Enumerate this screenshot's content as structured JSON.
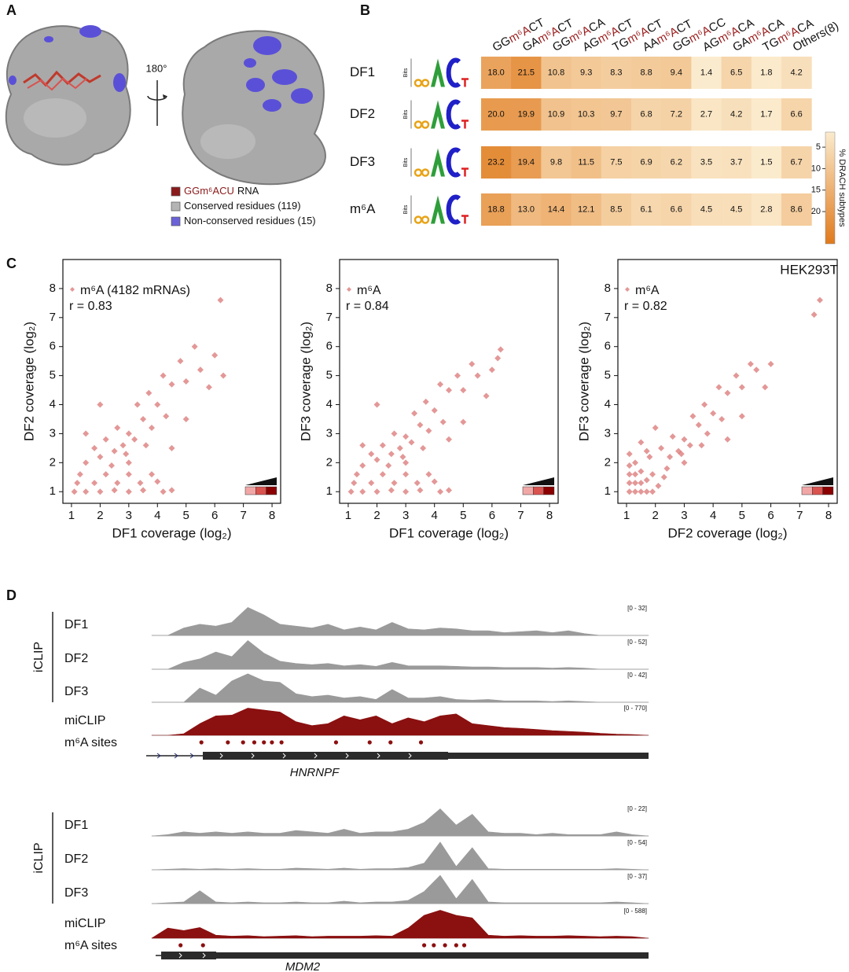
{
  "panel_labels": [
    "A",
    "B",
    "C",
    "D"
  ],
  "panel_a": {
    "rotation": "180°",
    "legend": [
      {
        "parts": [
          "GGm⁶ACU",
          "RNA"
        ],
        "color": "#8b1a1a"
      },
      {
        "parts": [
          "Conserved residues (119)"
        ],
        "color": "#b4b4b4"
      },
      {
        "parts": [
          "Non-conserved residues (15)"
        ],
        "color": "#6a62d6"
      }
    ]
  },
  "panel_c": {
    "cell_line": "HEK293T"
  },
  "chart_data": [
    {
      "type": "heatmap",
      "logo_axis": "Bits",
      "highlight_color": "#9b1c1c",
      "columns": [
        [
          "GG",
          "m⁶A",
          "CT"
        ],
        [
          "GA",
          "m⁶A",
          "CT"
        ],
        [
          "GG",
          "m⁶A",
          "CA"
        ],
        [
          "AG",
          "m⁶A",
          "CT"
        ],
        [
          "TG",
          "m⁶A",
          "CT"
        ],
        [
          "AA",
          "m⁶A",
          "CT"
        ],
        [
          "GG",
          "m⁶A",
          "CC"
        ],
        [
          "AG",
          "m⁶A",
          "CA"
        ],
        [
          "GA",
          "m⁶A",
          "CA"
        ],
        [
          "TG",
          "m⁶A",
          "CA"
        ],
        [
          "Others(8)"
        ]
      ],
      "rows": [
        "DF1",
        "DF2",
        "DF3",
        "m⁶A"
      ],
      "row_colors": [
        "#111",
        "#111",
        "#111",
        "#9b1c1c"
      ],
      "values": [
        [
          18.0,
          21.5,
          10.8,
          9.3,
          8.3,
          8.8,
          9.4,
          1.4,
          6.5,
          1.8,
          4.2
        ],
        [
          20.0,
          19.9,
          10.9,
          10.3,
          9.7,
          6.8,
          7.2,
          2.7,
          4.2,
          1.7,
          6.6
        ],
        [
          23.2,
          19.4,
          9.8,
          11.5,
          7.5,
          6.9,
          6.2,
          3.5,
          3.7,
          1.5,
          6.7
        ],
        [
          18.8,
          13.0,
          14.4,
          12.1,
          8.5,
          6.1,
          6.6,
          4.5,
          4.5,
          2.8,
          8.6
        ]
      ],
      "value_labels": [
        [
          "18.0",
          "21.5",
          "10.8",
          "9.3",
          "8.3",
          "8.8",
          "9.4",
          "1.4",
          "6.5",
          "1.8",
          "4.2"
        ],
        [
          "20.0",
          "19.9",
          "10.9",
          "10.3",
          "9.7",
          "6.8",
          "7.2",
          "2.7",
          "4.2",
          "1.7",
          "6.6"
        ],
        [
          "23.2",
          "19.4",
          "9.8",
          "11.5",
          "7.5",
          "6.9",
          "6.2",
          "3.5",
          "3.7",
          "1.5",
          "6.7"
        ],
        [
          "18.8",
          "13.0",
          "14.4",
          "12.1",
          "8.5",
          "6.1",
          "6.6",
          "4.5",
          "4.5",
          "2.8",
          "8.6"
        ]
      ],
      "clim": [
        1.5,
        27.5
      ],
      "cticks": [
        5,
        10,
        15,
        20
      ],
      "colorbar_label": "% DRACH subtypes",
      "colors": [
        "#fbebcd",
        "#e07a1c"
      ]
    },
    {
      "type": "scatter",
      "legend": "m⁶A (4182 mRNAs)",
      "annotation": "r = 0.83",
      "xlabel": "DF1 coverage (log₂)",
      "ylabel": "DF2 coverage (log₂)",
      "color": "#c8322f",
      "xlim": [
        0.7,
        8.3
      ],
      "ylim": [
        0.6,
        9
      ],
      "xticks": [
        1,
        2,
        3,
        4,
        5,
        6,
        7,
        8
      ],
      "yticks": [
        1,
        2,
        3,
        4,
        5,
        6,
        7,
        8
      ],
      "x": [
        1.1,
        1.5,
        2.0,
        2.5,
        3.0,
        3.5,
        4.2,
        4.5,
        1.2,
        1.8,
        2.6,
        3.4,
        4.0,
        1.3,
        2.2,
        3.0,
        3.8,
        1.5,
        2.0,
        2.5,
        2.8,
        3.0,
        3.2,
        2.6,
        3.5,
        3.8,
        2.2,
        1.8,
        3.3,
        4.0,
        4.3,
        3.7,
        4.5,
        4.2,
        5.0,
        4.8,
        5.5,
        5.3,
        6.0,
        5.8,
        2.0,
        1.5,
        3.0,
        4.5,
        5.0,
        6.2,
        6.3,
        2.4,
        2.9,
        3.6
      ],
      "y": [
        1.0,
        1.0,
        1.0,
        1.05,
        1.0,
        1.05,
        1.0,
        1.05,
        1.3,
        1.3,
        1.3,
        1.3,
        1.35,
        1.6,
        1.6,
        1.6,
        1.6,
        2.0,
        2.2,
        2.4,
        2.6,
        3.0,
        2.8,
        3.2,
        3.5,
        3.2,
        2.8,
        2.5,
        4.0,
        4.0,
        3.6,
        4.4,
        4.7,
        5.0,
        4.8,
        5.5,
        5.2,
        6.0,
        5.7,
        4.6,
        4.0,
        3.0,
        2.0,
        2.5,
        3.5,
        7.6,
        5.0,
        1.9,
        2.3,
        2.6
      ]
    },
    {
      "type": "scatter",
      "legend": "m⁶A",
      "annotation": "r = 0.84",
      "xlabel": "DF1 coverage (log₂)",
      "ylabel": "DF3 coverage (log₂)",
      "color": "#c8322f",
      "xlim": [
        0.7,
        8.3
      ],
      "ylim": [
        0.6,
        9
      ],
      "xticks": [
        1,
        2,
        3,
        4,
        5,
        6,
        7,
        8
      ],
      "yticks": [
        1,
        2,
        3,
        4,
        5,
        6,
        7,
        8
      ],
      "x": [
        1.1,
        1.5,
        2.0,
        2.5,
        3.0,
        3.5,
        4.2,
        4.5,
        1.2,
        1.8,
        2.6,
        3.4,
        4.0,
        1.3,
        2.2,
        3.0,
        3.8,
        1.5,
        2.0,
        2.5,
        2.8,
        3.0,
        3.2,
        2.6,
        3.5,
        3.8,
        2.2,
        1.8,
        3.3,
        4.0,
        4.3,
        3.7,
        4.5,
        4.2,
        5.0,
        4.8,
        5.5,
        5.3,
        6.0,
        5.8,
        2.0,
        1.5,
        3.0,
        4.5,
        5.0,
        6.2,
        6.3,
        2.4,
        2.9,
        3.6
      ],
      "y": [
        1.0,
        1.0,
        1.0,
        1.05,
        1.0,
        1.05,
        1.0,
        1.05,
        1.3,
        1.3,
        1.3,
        1.3,
        1.35,
        1.6,
        1.6,
        1.6,
        1.6,
        1.9,
        2.1,
        2.3,
        2.5,
        2.9,
        2.7,
        3.0,
        3.3,
        3.1,
        2.6,
        2.3,
        3.7,
        3.8,
        3.4,
        4.1,
        4.5,
        4.7,
        4.5,
        5.0,
        5.0,
        5.4,
        5.2,
        4.3,
        4.0,
        2.6,
        2.0,
        2.8,
        3.4,
        5.6,
        5.9,
        1.9,
        2.2,
        2.5
      ]
    },
    {
      "type": "scatter",
      "legend": "m⁶A",
      "annotation": "r = 0.82",
      "xlabel": "DF2 coverage (log₂)",
      "ylabel": "DF3 coverage (log₂)",
      "color": "#c8322f",
      "xlim": [
        0.7,
        8.3
      ],
      "ylim": [
        0.6,
        9
      ],
      "xticks": [
        1,
        2,
        3,
        4,
        5,
        6,
        7,
        8
      ],
      "yticks": [
        1,
        2,
        3,
        4,
        5,
        6,
        7,
        8
      ],
      "x": [
        1.1,
        1.1,
        1.1,
        1.1,
        1.1,
        1.3,
        1.3,
        1.3,
        1.3,
        1.5,
        1.5,
        1.5,
        1.7,
        1.7,
        1.7,
        1.9,
        1.9,
        2.1,
        2.3,
        2.5,
        2.8,
        3.0,
        3.2,
        2.6,
        3.5,
        3.8,
        2.2,
        1.8,
        3.3,
        4.0,
        4.3,
        3.7,
        4.5,
        4.2,
        5.0,
        4.8,
        5.5,
        5.3,
        6.0,
        5.8,
        2.0,
        1.5,
        3.0,
        4.5,
        5.0,
        7.7,
        7.5,
        2.4,
        2.9,
        3.6
      ],
      "y": [
        1.0,
        1.3,
        1.6,
        1.9,
        2.3,
        1.0,
        1.3,
        1.6,
        2.0,
        1.0,
        1.3,
        1.7,
        1.0,
        1.4,
        2.4,
        1.0,
        1.6,
        1.2,
        1.5,
        2.2,
        2.4,
        2.8,
        2.6,
        2.9,
        3.3,
        3.0,
        2.5,
        2.2,
        3.6,
        3.7,
        3.5,
        4.0,
        4.4,
        4.6,
        4.6,
        5.0,
        5.2,
        5.4,
        5.4,
        4.6,
        3.2,
        2.7,
        2.0,
        2.8,
        3.6,
        7.6,
        7.1,
        1.8,
        2.3,
        2.6
      ]
    }
  ],
  "panel_d": {
    "genes": [
      {
        "name": "HNRNPF",
        "group": "iCLIP",
        "sites_label": "m⁶A sites",
        "sites_color": "#8b1010",
        "sites": [
          3.1,
          4.75,
          5.7,
          6.4,
          7.0,
          7.5,
          8.1,
          11.5,
          13.6,
          14.9,
          16.8
        ],
        "tracks": [
          {
            "name": "DF1",
            "range": "[0 - 32]",
            "ylim": [
              0,
              32
            ],
            "color": "#9a9a9a",
            "values": [
              0,
              0,
              8,
              12,
              10,
              14,
              30,
              22,
              12,
              10,
              8,
              12,
              6,
              9,
              6,
              14,
              7,
              6,
              8,
              7,
              5,
              5,
              3,
              4,
              5,
              3,
              5,
              2,
              0,
              0,
              0,
              0
            ]
          },
          {
            "name": "DF2",
            "range": "[0 - 52]",
            "ylim": [
              0,
              52
            ],
            "color": "#9a9a9a",
            "values": [
              0,
              0,
              12,
              18,
              30,
              22,
              50,
              28,
              14,
              10,
              8,
              10,
              6,
              8,
              5,
              12,
              6,
              6,
              6,
              5,
              4,
              4,
              3,
              3,
              3,
              2,
              3,
              2,
              0,
              0,
              0,
              0
            ]
          },
          {
            "name": "DF3",
            "range": "[0 - 42]",
            "ylim": [
              0,
              42
            ],
            "color": "#9a9a9a",
            "values": [
              0,
              0,
              0,
              20,
              10,
              30,
              40,
              30,
              28,
              12,
              8,
              10,
              6,
              8,
              4,
              18,
              6,
              6,
              8,
              4,
              3,
              4,
              2,
              2,
              2,
              1,
              2,
              1,
              0,
              0,
              0,
              0
            ]
          },
          {
            "name": "miCLIP",
            "range": "[0 - 770]",
            "ylim": [
              0,
              770
            ],
            "color": "#8b1010",
            "values": [
              0,
              0,
              40,
              300,
              500,
              520,
              700,
              650,
              600,
              350,
              250,
              300,
              500,
              400,
              500,
              300,
              450,
              350,
              500,
              550,
              300,
              250,
              200,
              180,
              150,
              120,
              100,
              80,
              50,
              30,
              20,
              0
            ]
          }
        ]
      },
      {
        "name": "MDM2",
        "group": "iCLIP",
        "sites_label": "m⁶A sites",
        "sites_color": "#8b1010",
        "sites": [
          1.8,
          3.2,
          17.0,
          17.6,
          18.3,
          19.0,
          19.5
        ],
        "tracks": [
          {
            "name": "DF1",
            "range": "[0 - 22]",
            "ylim": [
              0,
              22
            ],
            "color": "#9a9a9a",
            "values": [
              0,
              1,
              3,
              2,
              3,
              2,
              3,
              2,
              2,
              4,
              3,
              2,
              5,
              2,
              3,
              3,
              5,
              10,
              20,
              8,
              16,
              3,
              2,
              2,
              1,
              2,
              1,
              1,
              1,
              3,
              1,
              0
            ]
          },
          {
            "name": "DF2",
            "range": "[0 - 54]",
            "ylim": [
              0,
              54
            ],
            "color": "#9a9a9a",
            "values": [
              0,
              1,
              2,
              1,
              2,
              1,
              2,
              1,
              1,
              3,
              2,
              1,
              3,
              1,
              2,
              2,
              4,
              12,
              50,
              6,
              40,
              2,
              1,
              1,
              1,
              1,
              1,
              1,
              1,
              2,
              1,
              0
            ]
          },
          {
            "name": "DF3",
            "range": "[0 - 37]",
            "ylim": [
              0,
              37
            ],
            "color": "#9a9a9a",
            "values": [
              0,
              1,
              2,
              16,
              2,
              1,
              2,
              1,
              1,
              2,
              1,
              1,
              3,
              1,
              2,
              2,
              4,
              15,
              35,
              6,
              30,
              2,
              1,
              1,
              1,
              1,
              1,
              1,
              1,
              2,
              1,
              0
            ]
          },
          {
            "name": "miCLIP",
            "range": "[0 - 588]",
            "ylim": [
              0,
              588
            ],
            "color": "#8b1010",
            "values": [
              0,
              200,
              150,
              210,
              60,
              40,
              50,
              30,
              40,
              50,
              30,
              40,
              40,
              40,
              50,
              40,
              200,
              450,
              550,
              450,
              400,
              60,
              40,
              50,
              40,
              40,
              50,
              40,
              30,
              40,
              30,
              0
            ]
          }
        ]
      }
    ]
  }
}
